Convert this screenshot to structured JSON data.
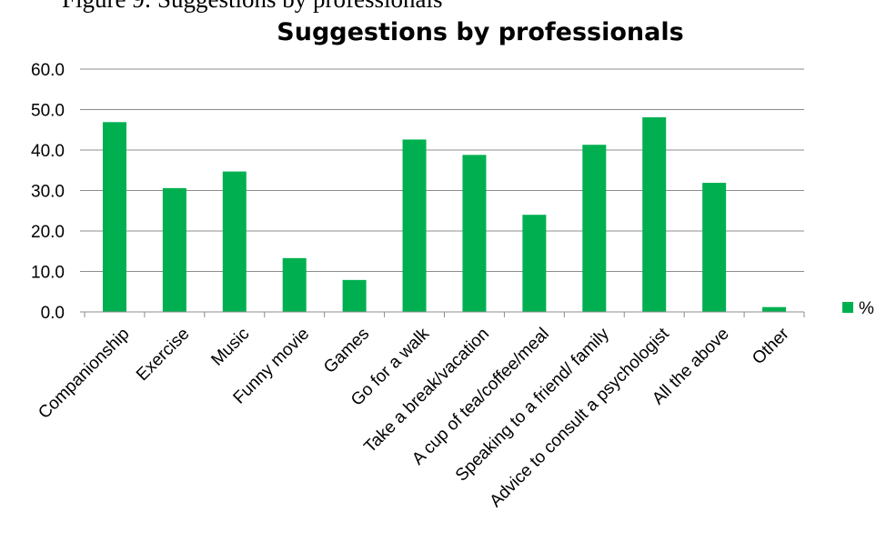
{
  "caption_fragment": "Figure 9: Suggestions by professionals",
  "chart_data": {
    "type": "bar",
    "title": "Suggestions by professionals",
    "xlabel": "",
    "ylabel": "",
    "categories": [
      "Companionship",
      "Exercise",
      "Music",
      "Funny movie",
      "Games",
      "Go for a walk",
      "Take a break/vacation",
      "A cup of tea/coffee/meal",
      "Speaking to a friend/ family",
      "Advice to consult a psychologist",
      "All the above",
      "Other"
    ],
    "series": [
      {
        "name": "%",
        "values": [
          46.9,
          30.6,
          34.7,
          13.3,
          7.9,
          42.6,
          38.8,
          24.0,
          41.3,
          48.1,
          31.9,
          1.2
        ],
        "color": "#00b050"
      }
    ],
    "ylim": [
      0,
      60
    ],
    "yticks": [
      "0.0",
      "10.0",
      "20.0",
      "30.0",
      "40.0",
      "50.0",
      "60.0"
    ],
    "grid": true,
    "legend_position": "right"
  }
}
